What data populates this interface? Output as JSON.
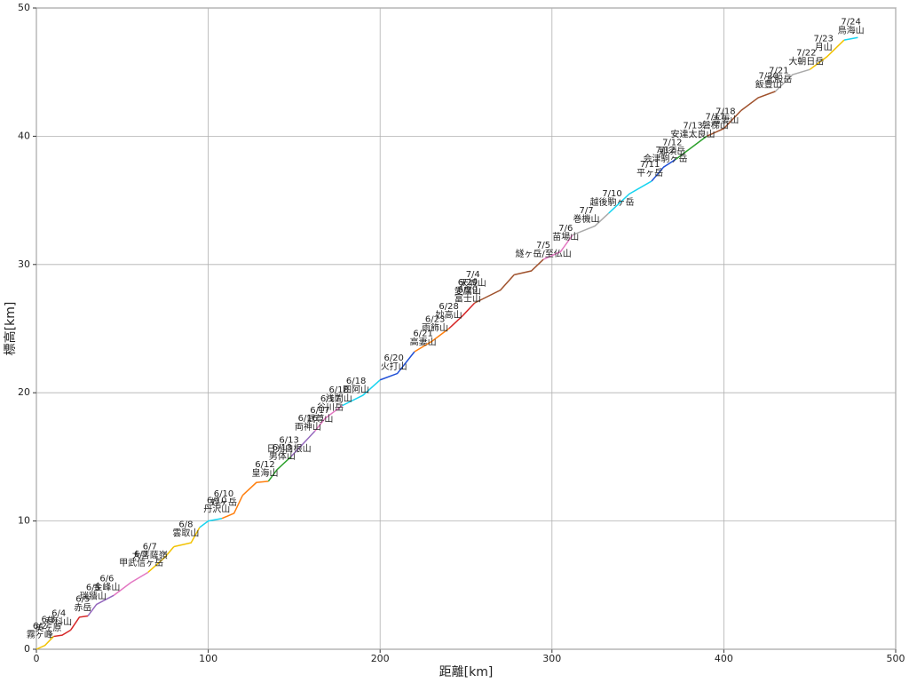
{
  "chart_data": {
    "type": "line",
    "xlabel": "距離[km]",
    "ylabel": "標高[km]",
    "xlim": [
      0,
      500
    ],
    "xticks": [
      0,
      100,
      200,
      300,
      400,
      500
    ],
    "ylim": [
      0,
      50
    ],
    "yticks": [
      0,
      10,
      20,
      30,
      40,
      50
    ],
    "grid": true,
    "series": [
      {
        "color": "#f2c200",
        "x": [
          0,
          5,
          10
        ],
        "values": [
          0,
          0.3,
          1.0
        ]
      },
      {
        "color": "#d62728",
        "x": [
          10,
          15,
          20
        ],
        "values": [
          1.0,
          1.1,
          1.5
        ]
      },
      {
        "color": "#d62728",
        "x": [
          20,
          25,
          30
        ],
        "values": [
          1.5,
          2.5,
          2.6
        ]
      },
      {
        "color": "#9467bd",
        "x": [
          30,
          35,
          45
        ],
        "values": [
          2.6,
          3.5,
          4.2
        ]
      },
      {
        "color": "#e377c2",
        "x": [
          45,
          55,
          65
        ],
        "values": [
          4.2,
          5.2,
          6.0
        ]
      },
      {
        "color": "#f2c200",
        "x": [
          65,
          75,
          80
        ],
        "values": [
          6.0,
          7.2,
          8.0
        ]
      },
      {
        "color": "#f2c200",
        "x": [
          80,
          90,
          95
        ],
        "values": [
          8.0,
          8.3,
          9.5
        ]
      },
      {
        "color": "#17d4f0",
        "x": [
          95,
          100,
          108
        ],
        "values": [
          9.5,
          10.0,
          10.2
        ]
      },
      {
        "color": "#ff7f0e",
        "x": [
          108,
          115,
          120
        ],
        "values": [
          10.2,
          10.6,
          12.0
        ]
      },
      {
        "color": "#ff7f0e",
        "x": [
          120,
          128,
          135
        ],
        "values": [
          12.0,
          13.0,
          13.1
        ]
      },
      {
        "color": "#2ca02c",
        "x": [
          135,
          140,
          148
        ],
        "values": [
          13.1,
          14.0,
          15.0
        ]
      },
      {
        "color": "#9467bd",
        "x": [
          148,
          155,
          162
        ],
        "values": [
          15.0,
          16.0,
          17.0
        ]
      },
      {
        "color": "#e377c2",
        "x": [
          162,
          168,
          178
        ],
        "values": [
          17.0,
          18.0,
          19.0
        ]
      },
      {
        "color": "#17d4f0",
        "x": [
          178,
          190,
          200
        ],
        "values": [
          19.0,
          19.8,
          21.0
        ]
      },
      {
        "color": "#1f4fd6",
        "x": [
          200,
          210,
          220
        ],
        "values": [
          21.0,
          21.5,
          23.2
        ]
      },
      {
        "color": "#ff7f0e",
        "x": [
          220,
          230,
          240
        ],
        "values": [
          23.2,
          24.0,
          25.0
        ]
      },
      {
        "color": "#d62728",
        "x": [
          240,
          248,
          255
        ],
        "values": [
          25.0,
          26.0,
          27.0
        ]
      },
      {
        "color": "#a0522d",
        "x": [
          255,
          270,
          278
        ],
        "values": [
          27.0,
          28.0,
          29.2
        ]
      },
      {
        "color": "#a0522d",
        "x": [
          278,
          288,
          295
        ],
        "values": [
          29.2,
          29.5,
          30.4
        ]
      },
      {
        "color": "#e377c2",
        "x": [
          295,
          305,
          312
        ],
        "values": [
          30.4,
          31.0,
          32.3
        ]
      },
      {
        "color": "#aaaaaa",
        "x": [
          312,
          325,
          333
        ],
        "values": [
          32.3,
          33.0,
          34.0
        ]
      },
      {
        "color": "#17d4f0",
        "x": [
          333,
          345,
          358
        ],
        "values": [
          34.0,
          35.5,
          36.5
        ]
      },
      {
        "color": "#1f4fd6",
        "x": [
          358,
          365,
          372
        ],
        "values": [
          36.5,
          37.6,
          38.2
        ]
      },
      {
        "color": "#2ca02c",
        "x": [
          372,
          380,
          390
        ],
        "values": [
          38.2,
          39.0,
          40.0
        ]
      },
      {
        "color": "#a0522d",
        "x": [
          390,
          400,
          410
        ],
        "values": [
          40.0,
          40.6,
          42.0
        ]
      },
      {
        "color": "#a0522d",
        "x": [
          410,
          420,
          430
        ],
        "values": [
          42.0,
          43.0,
          43.5
        ]
      },
      {
        "color": "#aaaaaa",
        "x": [
          430,
          440,
          450
        ],
        "values": [
          43.5,
          44.8,
          45.2
        ]
      },
      {
        "color": "#f2c200",
        "x": [
          450,
          460,
          470
        ],
        "values": [
          45.2,
          46.2,
          47.5
        ]
      },
      {
        "color": "#17d4f0",
        "x": [
          470,
          478
        ],
        "values": [
          47.5,
          47.7
        ]
      }
    ],
    "annotations": [
      {
        "x": 2,
        "y": 0.5,
        "date": "6/2",
        "label": "霧ヶ峰"
      },
      {
        "x": 7,
        "y": 1.0,
        "date": "6/3",
        "label": "美ヶ原"
      },
      {
        "x": 13,
        "y": 1.5,
        "date": "6/4",
        "label": "蓼科山"
      },
      {
        "x": 27,
        "y": 2.6,
        "date": "6/5",
        "label": "赤岳"
      },
      {
        "x": 33,
        "y": 3.5,
        "date": "6/5",
        "label": "瑞牆山"
      },
      {
        "x": 41,
        "y": 4.2,
        "date": "6/6",
        "label": "金峰山"
      },
      {
        "x": 61,
        "y": 6.1,
        "date": "6/7",
        "label": "甲武信ヶ岳"
      },
      {
        "x": 66,
        "y": 6.7,
        "date": "6/7",
        "label": "大菩薩嶺"
      },
      {
        "x": 87,
        "y": 8.4,
        "date": "6/8",
        "label": "雲取山"
      },
      {
        "x": 105,
        "y": 10.3,
        "date": "6/10",
        "label": "丹沢山"
      },
      {
        "x": 109,
        "y": 10.8,
        "date": "6/10",
        "label": "蛭ヶ岳"
      },
      {
        "x": 133,
        "y": 13.1,
        "date": "6/12",
        "label": "皇海山"
      },
      {
        "x": 143,
        "y": 14.4,
        "date": "6/13",
        "label": "男体山"
      },
      {
        "x": 147,
        "y": 15.0,
        "date": "6/13",
        "label": "日光白根山"
      },
      {
        "x": 158,
        "y": 16.7,
        "date": "6/16",
        "label": "両神山"
      },
      {
        "x": 165,
        "y": 17.3,
        "date": "6/17",
        "label": "武尊山"
      },
      {
        "x": 171,
        "y": 18.2,
        "date": "6/17",
        "label": "谷川岳"
      },
      {
        "x": 176,
        "y": 18.9,
        "date": "6/18",
        "label": "浅間山"
      },
      {
        "x": 186,
        "y": 19.6,
        "date": "6/18",
        "label": "四阿山"
      },
      {
        "x": 208,
        "y": 21.4,
        "date": "6/20",
        "label": "火打山"
      },
      {
        "x": 225,
        "y": 23.3,
        "date": "6/21",
        "label": "高妻山"
      },
      {
        "x": 232,
        "y": 24.4,
        "date": "6/23",
        "label": "雨飾山"
      },
      {
        "x": 240,
        "y": 25.4,
        "date": "6/28",
        "label": "妙高山"
      },
      {
        "x": 251,
        "y": 26.7,
        "date": "6/29",
        "label": "富士山"
      },
      {
        "x": 251,
        "y": 27.3,
        "date": "6/29",
        "label": "愛鷹山"
      },
      {
        "x": 254,
        "y": 27.9,
        "date": "7/4",
        "label": "天城山"
      },
      {
        "x": 295,
        "y": 30.2,
        "date": "7/5",
        "label": "燧ヶ岳/至仏山"
      },
      {
        "x": 308,
        "y": 31.5,
        "date": "7/6",
        "label": "苗場山"
      },
      {
        "x": 320,
        "y": 32.9,
        "date": "7/7",
        "label": "巻機山"
      },
      {
        "x": 335,
        "y": 34.2,
        "date": "7/10",
        "label": "越後駒ヶ岳"
      },
      {
        "x": 357,
        "y": 36.5,
        "date": "7/11",
        "label": "平ヶ岳"
      },
      {
        "x": 366,
        "y": 37.6,
        "date": "7/12",
        "label": "会津駒ヶ岳"
      },
      {
        "x": 370,
        "y": 38.2,
        "date": "7/12",
        "label": "那須岳"
      },
      {
        "x": 382,
        "y": 39.5,
        "date": "7/13",
        "label": "安達太良山"
      },
      {
        "x": 395,
        "y": 40.2,
        "date": "7/17",
        "label": "磐梯山"
      },
      {
        "x": 401,
        "y": 40.6,
        "date": "7/18",
        "label": "吾妻山"
      },
      {
        "x": 426,
        "y": 43.4,
        "date": "7/20",
        "label": "飯豊山"
      },
      {
        "x": 432,
        "y": 43.8,
        "date": "7/21",
        "label": "北股岳"
      },
      {
        "x": 448,
        "y": 45.2,
        "date": "7/22",
        "label": "大朝日岳"
      },
      {
        "x": 458,
        "y": 46.3,
        "date": "7/23",
        "label": "月山"
      },
      {
        "x": 474,
        "y": 47.6,
        "date": "7/24",
        "label": "鳥海山"
      }
    ]
  }
}
